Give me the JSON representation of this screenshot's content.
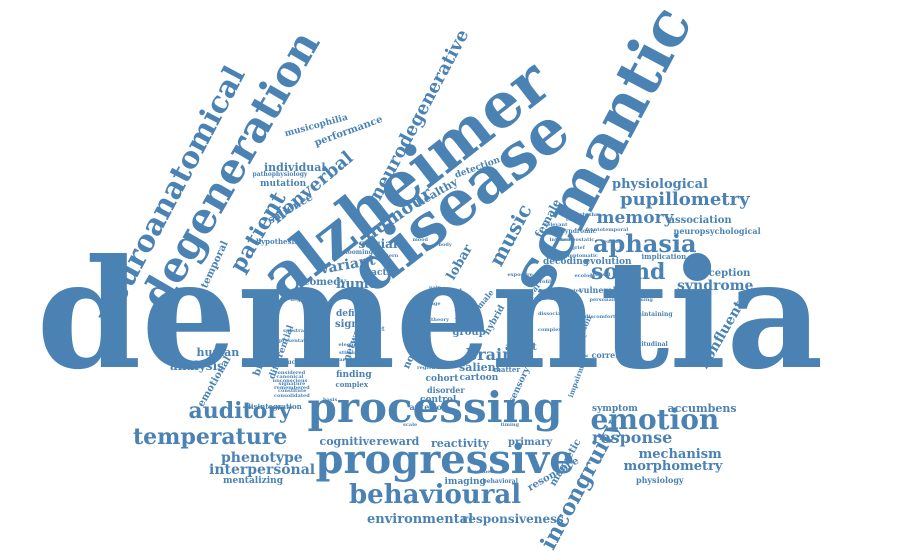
{
  "colors": {
    "text": "#4a82b4",
    "background": "#ffffff"
  },
  "words": [
    {
      "t": "dementia",
      "s": 5
    },
    {
      "t": "processing",
      "s": 3
    },
    {
      "t": "progressive",
      "s": 3
    },
    {
      "t": "alzheimer",
      "s": 3
    },
    {
      "t": "disease",
      "s": 3
    },
    {
      "t": "semantic",
      "s": 3
    },
    {
      "t": "degeneration",
      "s": 2
    },
    {
      "t": "behavioural",
      "s": 2
    },
    {
      "t": "neuroanatomical",
      "s": 2
    },
    {
      "t": "emotion",
      "s": 2
    },
    {
      "t": "temperature",
      "s": 2
    },
    {
      "t": "auditory",
      "s": 2
    },
    {
      "t": "aphasia",
      "s": 2
    },
    {
      "t": "sound",
      "s": 2
    },
    {
      "t": "patient",
      "s": 2
    },
    {
      "t": "incongruity",
      "s": 2
    },
    {
      "t": "neurodegenerative",
      "s": 2
    },
    {
      "t": "nonverbal",
      "s": 2
    },
    {
      "t": "humour",
      "s": 2
    },
    {
      "t": "music",
      "s": 2
    },
    {
      "t": "pupillometry",
      "s": 2
    },
    {
      "t": "memory",
      "s": 2
    },
    {
      "t": "physiological",
      "s": 1
    },
    {
      "t": "response",
      "s": 1
    },
    {
      "t": "brain",
      "s": 1
    },
    {
      "t": "syndrome",
      "s": 1
    },
    {
      "t": "mechanism",
      "s": 1
    },
    {
      "t": "morphometry",
      "s": 1
    },
    {
      "t": "phenotype",
      "s": 1
    },
    {
      "t": "interpersonal",
      "s": 1
    },
    {
      "t": "environmental",
      "s": 1
    },
    {
      "t": "responsiveness",
      "s": 1
    },
    {
      "t": "variant",
      "s": 1
    },
    {
      "t": "humor",
      "s": 1
    },
    {
      "t": "social",
      "s": 1
    },
    {
      "t": "lobar",
      "s": 1
    },
    {
      "t": "female",
      "s": 1
    },
    {
      "t": "healthy",
      "s": 1
    },
    {
      "t": "salience",
      "s": 1
    },
    {
      "t": "temporal",
      "s": 1
    },
    {
      "t": "nonfluent",
      "s": 1
    },
    {
      "t": "accumbens",
      "s": 1
    },
    {
      "t": "perception",
      "s": 1
    },
    {
      "t": "association",
      "s": 1
    },
    {
      "t": "analysis",
      "s": 1
    },
    {
      "t": "human",
      "s": 1
    },
    {
      "t": "individual",
      "s": 1
    },
    {
      "t": "mutation",
      "s": 1
    },
    {
      "t": "performance",
      "s": 1
    },
    {
      "t": "musicophilia",
      "s": 1
    },
    {
      "t": "detection",
      "s": 1
    },
    {
      "t": "cognitive",
      "s": 1
    },
    {
      "t": "reward",
      "s": 1
    },
    {
      "t": "reactivity",
      "s": 1
    },
    {
      "t": "primary",
      "s": 1
    },
    {
      "t": "network",
      "s": 1
    },
    {
      "t": "affect",
      "s": 1
    },
    {
      "t": "salient",
      "s": 1
    },
    {
      "t": "cartoon",
      "s": 1
    },
    {
      "t": "magnetic",
      "s": 1
    },
    {
      "t": "resonance",
      "s": 1
    },
    {
      "t": "symptom",
      "s": 1
    },
    {
      "t": "imaging",
      "s": 1
    },
    {
      "t": "emotional",
      "s": 1
    },
    {
      "t": "mentalizing",
      "s": 1
    },
    {
      "t": "comedy",
      "s": 1
    },
    {
      "t": "tactile",
      "s": 1
    },
    {
      "t": "signal",
      "s": 1
    },
    {
      "t": "deficit",
      "s": 1
    },
    {
      "t": "aged",
      "s": 1
    },
    {
      "t": "novel",
      "s": 1
    },
    {
      "t": "pain",
      "s": 1
    },
    {
      "t": "self",
      "s": 1
    },
    {
      "t": "group",
      "s": 1
    },
    {
      "t": "cohort",
      "s": 1
    },
    {
      "t": "finding",
      "s": 1
    },
    {
      "t": "control",
      "s": 1
    },
    {
      "t": "biological",
      "s": 1
    },
    {
      "t": "differential",
      "s": 1
    },
    {
      "t": "hypothesis",
      "s": 1
    },
    {
      "t": "decoding",
      "s": 1
    },
    {
      "t": "evolution",
      "s": 1
    },
    {
      "t": "vulnerable",
      "s": 1
    },
    {
      "t": "neuropsychological",
      "s": 1
    },
    {
      "t": "implication",
      "s": 1
    },
    {
      "t": "physiology",
      "s": 1
    },
    {
      "t": "sensory",
      "s": 1
    },
    {
      "t": "cognition",
      "s": 1
    },
    {
      "t": "correlate",
      "s": 1
    },
    {
      "t": "impairment",
      "s": 1
    },
    {
      "t": "hedonic",
      "s": 1
    },
    {
      "t": "longitudinal",
      "s": 1
    },
    {
      "t": "disintegration",
      "s": 1
    },
    {
      "t": "complex",
      "s": 1
    },
    {
      "t": "disorder",
      "s": 1
    },
    {
      "t": "hybrid",
      "s": 1
    },
    {
      "t": "clinical",
      "s": 1
    },
    {
      "t": "male",
      "s": 1
    },
    {
      "t": "looming",
      "s": 1
    },
    {
      "t": "abstract",
      "s": 1
    },
    {
      "t": "anterior",
      "s": 1
    },
    {
      "t": "voxel",
      "s": 1
    },
    {
      "t": "matter",
      "s": 1
    },
    {
      "t": "structural",
      "s": 1
    },
    {
      "t": "syndromic",
      "s": 1
    },
    {
      "t": "maintaining",
      "s": 1
    },
    {
      "t": "pathophysiology",
      "s": 1
    },
    {
      "t": "substrate",
      "s": 1
    },
    {
      "t": "representation",
      "s": 1
    },
    {
      "t": "considered",
      "s": 1
    },
    {
      "t": "unconscious",
      "s": 1
    },
    {
      "t": "remembered",
      "s": 1
    },
    {
      "t": "consolidated",
      "s": 1
    },
    {
      "t": "canonical",
      "s": 1
    },
    {
      "t": "signature",
      "s": 1
    },
    {
      "t": "constitute",
      "s": 1
    },
    {
      "t": "elegant",
      "s": 1
    },
    {
      "t": "stimuli",
      "s": 1
    },
    {
      "t": "variable",
      "s": 1
    },
    {
      "t": "dissociation",
      "s": 1
    },
    {
      "t": "homeostatic",
      "s": 1
    },
    {
      "t": "symptomatic",
      "s": 1
    },
    {
      "t": "chapter",
      "s": 1
    },
    {
      "t": "resilience",
      "s": 1
    },
    {
      "t": "complexity",
      "s": 1
    },
    {
      "t": "discomfort",
      "s": 1
    },
    {
      "t": "synthetic",
      "s": 1
    },
    {
      "t": "behavioral",
      "s": 1
    },
    {
      "t": "ecology",
      "s": 1
    },
    {
      "t": "image",
      "s": 1
    },
    {
      "t": "theory",
      "s": 1
    },
    {
      "t": "exposure",
      "s": 1
    },
    {
      "t": "profile",
      "s": 1
    },
    {
      "t": "region",
      "s": 1
    },
    {
      "t": "linking",
      "s": 1
    },
    {
      "t": "mood",
      "s": 1
    },
    {
      "t": "pain",
      "s": 1
    },
    {
      "t": "body",
      "s": 1
    },
    {
      "t": "pattern",
      "s": 1
    },
    {
      "t": "grief",
      "s": 1
    },
    {
      "t": "frontotemporal",
      "s": 1
    },
    {
      "t": "ventral",
      "s": 1
    },
    {
      "t": "arousal",
      "s": 1
    },
    {
      "t": "personality",
      "s": 1
    },
    {
      "t": "intense",
      "s": 1
    },
    {
      "t": "relevant",
      "s": 1
    },
    {
      "t": "cortex",
      "s": 1
    },
    {
      "t": "rhythm",
      "s": 1
    },
    {
      "t": "scale",
      "s": 1
    },
    {
      "t": "timing",
      "s": 1
    },
    {
      "t": "basis",
      "s": 1
    },
    {
      "t": "degree",
      "s": 1
    },
    {
      "t": "deficits",
      "s": 1
    },
    {
      "t": "scanning",
      "s": 1
    }
  ]
}
